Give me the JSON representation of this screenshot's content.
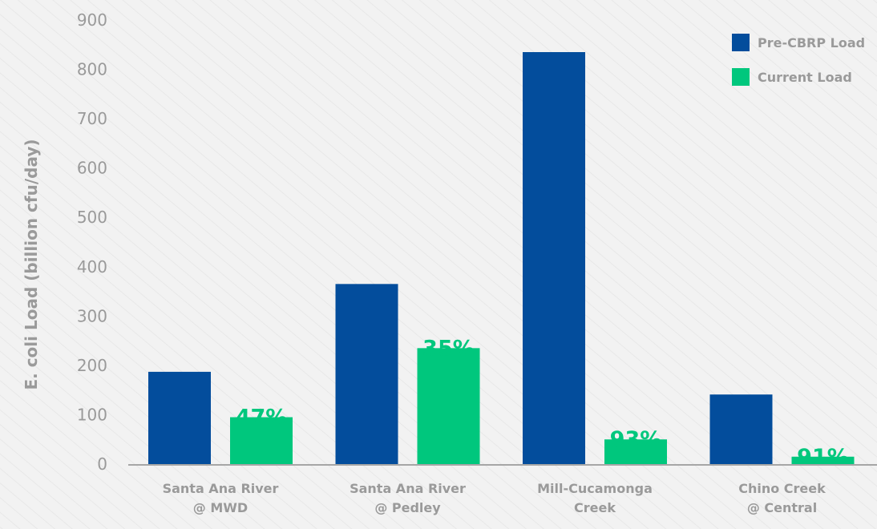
{
  "chart_data": {
    "type": "bar",
    "title": "",
    "xlabel": "",
    "ylabel": "E. coli Load (billion cfu/day)",
    "ylim": [
      0,
      900
    ],
    "yticks": [
      0,
      100,
      200,
      300,
      400,
      500,
      600,
      700,
      800,
      900
    ],
    "categories": [
      [
        "Santa Ana River",
        "@ MWD"
      ],
      [
        "Santa Ana River",
        "@ Pedley"
      ],
      [
        "Mill-Cucamonga",
        "Creek"
      ],
      [
        "Chino Creek",
        "@ Central"
      ]
    ],
    "series": [
      {
        "name": "Pre-CBRP Load",
        "color": "#034d9c",
        "values": [
          187,
          365,
          835,
          141
        ]
      },
      {
        "name": "Current Load",
        "color": "#00c77d",
        "values": [
          95,
          235,
          50,
          15
        ]
      }
    ],
    "annotations": [
      "47%",
      "35%",
      "93%",
      "91%"
    ],
    "legend_position": "top-right",
    "grid": false
  }
}
